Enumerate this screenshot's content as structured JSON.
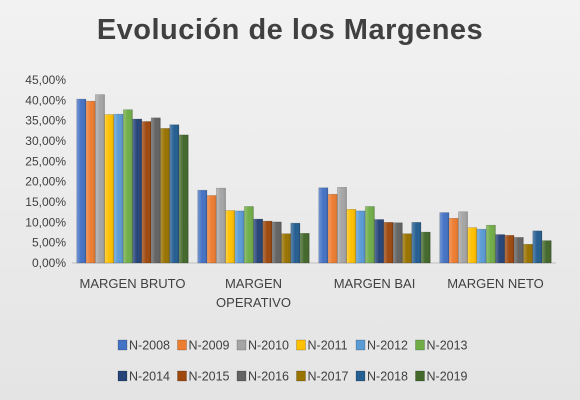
{
  "chart_data": {
    "type": "bar",
    "title": "Evolución de los Margenes",
    "xlabel": "",
    "ylabel": "",
    "ylim": [
      0,
      45
    ],
    "y_tick_labels": [
      "0,00%",
      "5,00%",
      "10,00%",
      "15,00%",
      "20,00%",
      "25,00%",
      "30,00%",
      "35,00%",
      "40,00%",
      "45,00%"
    ],
    "y_ticks": [
      0,
      5,
      10,
      15,
      20,
      25,
      30,
      35,
      40,
      45
    ],
    "grid": false,
    "legend_position": "bottom",
    "categories": [
      {
        "line1": "MARGEN BRUTO",
        "line2": ""
      },
      {
        "line1": "MARGEN",
        "line2": "OPERATIVO"
      },
      {
        "line1": "MARGEN BAI",
        "line2": ""
      },
      {
        "line1": "MARGEN NETO",
        "line2": ""
      }
    ],
    "series": [
      {
        "name": "N-2008",
        "color": "#4472c4",
        "values": [
          40.3,
          17.9,
          18.5,
          12.4
        ]
      },
      {
        "name": "N-2009",
        "color": "#ed7d31",
        "values": [
          39.8,
          16.6,
          16.9,
          11.0
        ]
      },
      {
        "name": "N-2010",
        "color": "#a5a5a5",
        "values": [
          41.4,
          18.4,
          18.6,
          12.6
        ]
      },
      {
        "name": "N-2011",
        "color": "#ffc000",
        "values": [
          36.5,
          12.9,
          13.2,
          8.7
        ]
      },
      {
        "name": "N-2012",
        "color": "#5b9bd5",
        "values": [
          36.6,
          12.8,
          12.8,
          8.3
        ]
      },
      {
        "name": "N-2013",
        "color": "#70ad47",
        "values": [
          37.7,
          13.9,
          13.9,
          9.3
        ]
      },
      {
        "name": "N-2014",
        "color": "#264478",
        "values": [
          35.4,
          10.8,
          10.7,
          7.0
        ]
      },
      {
        "name": "N-2015",
        "color": "#9e480e",
        "values": [
          34.8,
          10.3,
          10.0,
          6.8
        ]
      },
      {
        "name": "N-2016",
        "color": "#636363",
        "values": [
          35.7,
          10.1,
          9.9,
          6.3
        ]
      },
      {
        "name": "N-2017",
        "color": "#997300",
        "values": [
          33.1,
          7.2,
          7.2,
          4.6
        ]
      },
      {
        "name": "N-2018",
        "color": "#255e91",
        "values": [
          34.0,
          9.8,
          10.0,
          7.9
        ]
      },
      {
        "name": "N-2019",
        "color": "#43682b",
        "values": [
          31.5,
          7.3,
          7.6,
          5.5
        ]
      }
    ]
  }
}
